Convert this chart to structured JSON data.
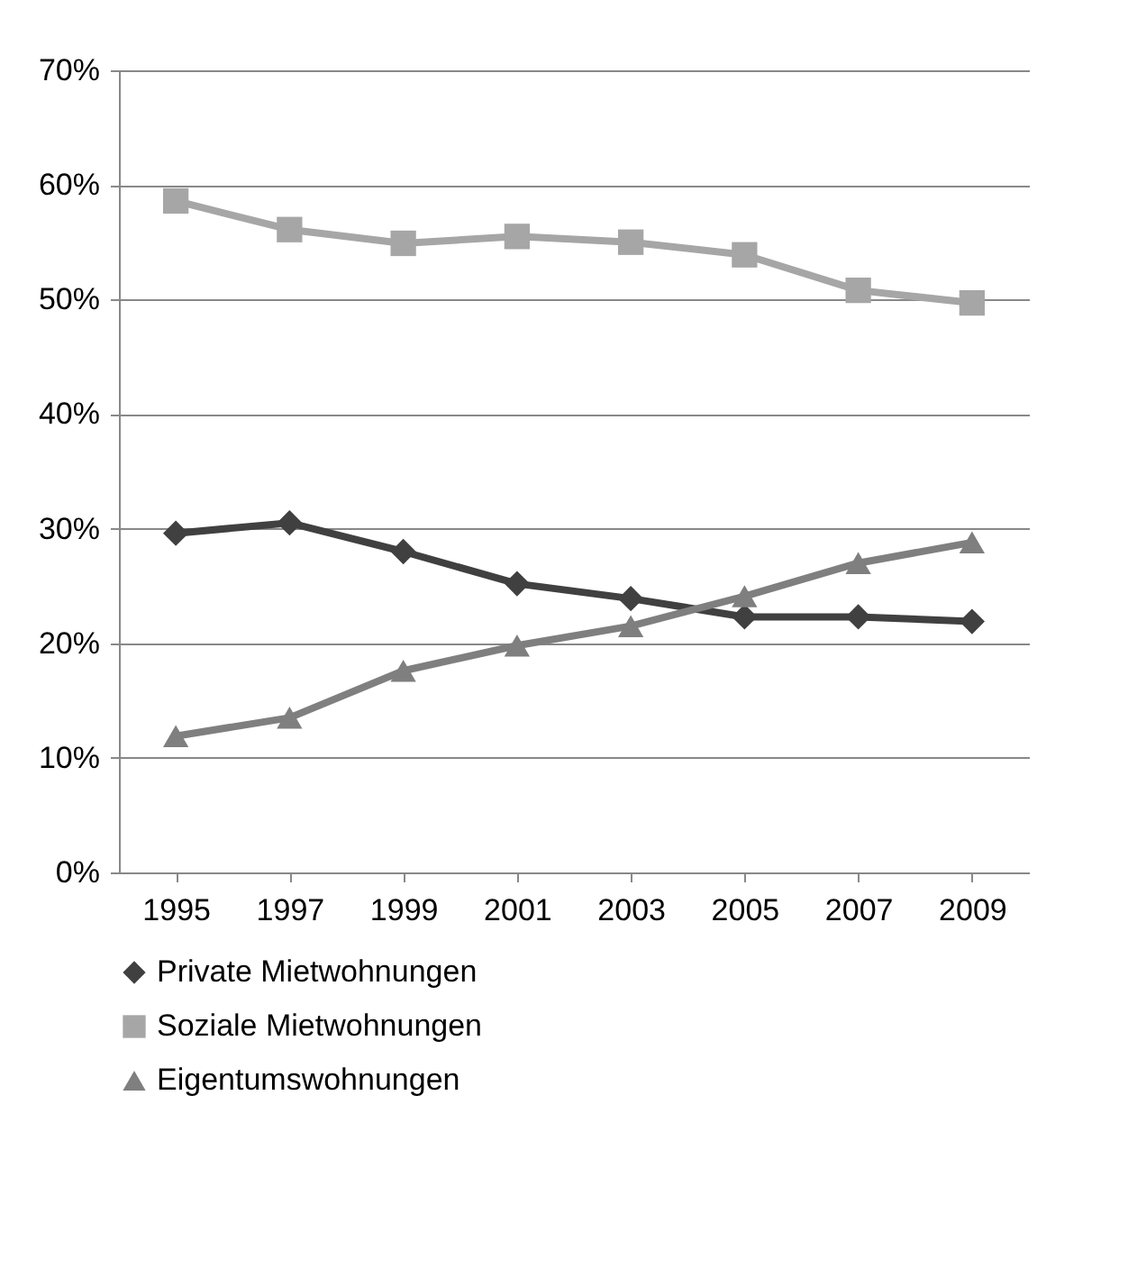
{
  "chart_data": {
    "type": "line",
    "categories": [
      "1995",
      "1997",
      "1999",
      "2001",
      "2003",
      "2005",
      "2007",
      "2009"
    ],
    "series": [
      {
        "name": "Private Mietwohnungen",
        "color": "#404040",
        "marker": "diamond",
        "values": [
          29.6,
          30.5,
          28.0,
          25.2,
          23.9,
          22.3,
          22.3,
          21.9
        ]
      },
      {
        "name": "Soziale Mietwohnungen",
        "color": "#a6a6a6",
        "marker": "square",
        "values": [
          58.6,
          56.1,
          54.9,
          55.5,
          55.0,
          53.9,
          50.8,
          49.7
        ]
      },
      {
        "name": "Eigentumswohnungen",
        "color": "#7f7f7f",
        "marker": "triangle",
        "values": [
          11.9,
          13.5,
          17.6,
          19.8,
          21.5,
          24.1,
          27.0,
          28.8
        ]
      }
    ],
    "ylim": [
      0,
      70
    ],
    "yticks": [
      {
        "value": 0,
        "label": "0%"
      },
      {
        "value": 10,
        "label": "10%"
      },
      {
        "value": 20,
        "label": "20%"
      },
      {
        "value": 30,
        "label": "30%"
      },
      {
        "value": 40,
        "label": "40%"
      },
      {
        "value": 50,
        "label": "50%"
      },
      {
        "value": 60,
        "label": "60%"
      },
      {
        "value": 70,
        "label": "70%"
      }
    ],
    "grid": "y",
    "legend": "bottom"
  }
}
